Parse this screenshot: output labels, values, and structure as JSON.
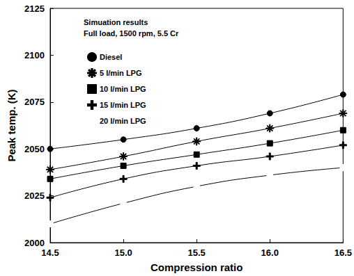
{
  "chart_data": {
    "type": "line",
    "annotations": [
      "Simuation results",
      "Full load, 1500 rpm, 5.5 Cr"
    ],
    "x_label": "Compression ratio",
    "y_label": "Peak temp. (K)",
    "x": [
      14.5,
      15.0,
      15.5,
      16.0,
      16.5
    ],
    "xlim": [
      14.5,
      16.5
    ],
    "xticks": [
      14.5,
      {
        "value": 15,
        "label": "15.0"
      },
      15.5,
      {
        "value": 16,
        "label": "16.0"
      },
      16.5
    ],
    "ylim": [
      2000,
      2125
    ],
    "yticks": [
      2000,
      2025,
      2050,
      2075,
      2100,
      2125
    ],
    "grid": false,
    "legend": "upper left",
    "series": [
      {
        "name": "Diesel",
        "color": "#000000",
        "marker": "circle",
        "values": [
          2050,
          2055,
          2061,
          2069,
          2079
        ]
      },
      {
        "name": "5 l/min LPG",
        "color": "#000000",
        "marker": "asterisk",
        "values": [
          2039,
          2046,
          2054,
          2061,
          2069
        ]
      },
      {
        "name": "10 l/min LPG",
        "color": "#000000",
        "marker": "square",
        "values": [
          2034,
          2041,
          2047,
          2053,
          2060
        ]
      },
      {
        "name": "15 l/min LPG",
        "color": "#000000",
        "marker": "plus",
        "values": [
          2024,
          2034,
          2041,
          2046,
          2052
        ]
      },
      {
        "name": "20 l/min LPG",
        "color": "#000000",
        "marker": "open_circle",
        "values": [
          2010,
          2021,
          2030,
          2036,
          2040
        ]
      }
    ]
  }
}
